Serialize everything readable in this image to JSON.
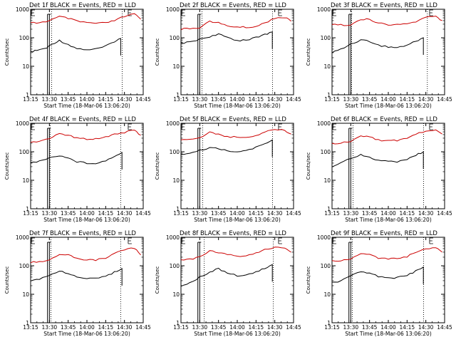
{
  "chart_data": [
    {
      "type": "line",
      "title": "Det 1f BLACK = Events, RED = LLD",
      "ylabel": "Counts/sec",
      "xlabel": "Start Time (18-Mar-06 13:06:20)",
      "x_ticks": [
        "13:15",
        "13:30",
        "13:45",
        "14:00",
        "14:15",
        "14:30",
        "14:45"
      ],
      "y_ticks": [
        "1",
        "10",
        "100",
        "1000"
      ],
      "yscale": "log",
      "ylim": [
        1,
        1000
      ],
      "series": [
        {
          "name": "Events",
          "color": "#000000",
          "x": [
            "13:15",
            "13:20",
            "13:28",
            "13:32",
            "13:38",
            "13:45",
            "13:52",
            "14:00",
            "14:07",
            "14:15",
            "14:22",
            "14:27"
          ],
          "values": [
            32,
            36,
            44,
            60,
            80,
            58,
            42,
            38,
            40,
            50,
            75,
            95
          ]
        },
        {
          "name": "LLD",
          "color": "#cc0000",
          "x": [
            "13:15",
            "13:22",
            "13:30",
            "13:38",
            "13:45",
            "13:52",
            "14:00",
            "14:07",
            "14:15",
            "14:22",
            "14:30",
            "14:38",
            "14:43"
          ],
          "values": [
            330,
            340,
            400,
            550,
            480,
            380,
            340,
            320,
            330,
            400,
            560,
            680,
            450
          ]
        }
      ]
    },
    {
      "type": "line",
      "title": "Det 2f BLACK = Events, RED = LLD",
      "ylabel": "Counts/sec",
      "xlabel": "Start Time (18-Mar-06 13:06:20)",
      "x_ticks": [
        "13:15",
        "13:30",
        "13:45",
        "14:00",
        "14:15",
        "14:30",
        "14:45"
      ],
      "y_ticks": [
        "1",
        "10",
        "100",
        "1000"
      ],
      "yscale": "log",
      "ylim": [
        1,
        1000
      ],
      "series": [
        {
          "name": "Events",
          "color": "#000000",
          "x": [
            "13:15",
            "13:22",
            "13:30",
            "13:38",
            "13:45",
            "13:52",
            "14:00",
            "14:07",
            "14:15",
            "14:22",
            "14:28"
          ],
          "values": [
            65,
            70,
            90,
            110,
            130,
            105,
            80,
            85,
            100,
            130,
            160
          ]
        },
        {
          "name": "LLD",
          "color": "#cc0000",
          "x": [
            "13:15",
            "13:22",
            "13:30",
            "13:38",
            "13:45",
            "13:52",
            "14:00",
            "14:07",
            "14:15",
            "14:22",
            "14:30",
            "14:38",
            "14:43"
          ],
          "values": [
            200,
            210,
            230,
            380,
            330,
            260,
            240,
            230,
            250,
            330,
            500,
            520,
            380
          ]
        }
      ]
    },
    {
      "type": "line",
      "title": "Det 3f BLACK = Events, RED = LLD",
      "ylabel": "Counts/sec",
      "xlabel": "Start Time (18-Mar-06 13:06:20)",
      "x_ticks": [
        "13:15",
        "13:30",
        "13:45",
        "14:00",
        "14:15",
        "14:30",
        "14:45"
      ],
      "y_ticks": [
        "1",
        "10",
        "100",
        "1000"
      ],
      "yscale": "log",
      "ylim": [
        1,
        1000
      ],
      "series": [
        {
          "name": "Events",
          "color": "#000000",
          "x": [
            "13:15",
            "13:22",
            "13:30",
            "13:38",
            "13:45",
            "13:52",
            "14:00",
            "14:07",
            "14:15",
            "14:22",
            "14:28"
          ],
          "values": [
            30,
            40,
            60,
            85,
            75,
            55,
            48,
            45,
            55,
            75,
            100
          ]
        },
        {
          "name": "LLD",
          "color": "#cc0000",
          "x": [
            "13:15",
            "13:22",
            "13:30",
            "13:38",
            "13:45",
            "13:52",
            "14:00",
            "14:07",
            "14:15",
            "14:22",
            "14:30",
            "14:38",
            "14:43"
          ],
          "values": [
            300,
            280,
            290,
            420,
            450,
            330,
            280,
            290,
            310,
            370,
            520,
            560,
            400
          ]
        }
      ]
    },
    {
      "type": "line",
      "title": "Det 4f BLACK = Events, RED = LLD",
      "ylabel": "Counts/sec",
      "xlabel": "Start Time (18-Mar-06 13:06:20)",
      "x_ticks": [
        "13:15",
        "13:30",
        "13:45",
        "14:00",
        "14:15",
        "14:30",
        "14:45"
      ],
      "y_ticks": [
        "1",
        "10",
        "100",
        "1000"
      ],
      "yscale": "log",
      "ylim": [
        1,
        1000
      ],
      "series": [
        {
          "name": "Events",
          "color": "#000000",
          "x": [
            "13:15",
            "13:22",
            "13:30",
            "13:38",
            "13:45",
            "13:52",
            "14:00",
            "14:07",
            "14:15",
            "14:22",
            "14:28"
          ],
          "values": [
            40,
            48,
            60,
            75,
            60,
            45,
            40,
            40,
            48,
            70,
            95
          ]
        },
        {
          "name": "LLD",
          "color": "#cc0000",
          "x": [
            "13:15",
            "13:22",
            "13:30",
            "13:38",
            "13:45",
            "13:52",
            "14:00",
            "14:07",
            "14:15",
            "14:22",
            "14:30",
            "14:38",
            "14:43"
          ],
          "values": [
            220,
            230,
            300,
            430,
            380,
            300,
            280,
            290,
            330,
            420,
            480,
            560,
            380
          ]
        }
      ]
    },
    {
      "type": "line",
      "title": "Det 5f BLACK = Events, RED = LLD",
      "ylabel": "Counts/sec",
      "xlabel": "Start Time (18-Mar-06 13:06:20)",
      "x_ticks": [
        "13:15",
        "13:30",
        "13:45",
        "14:00",
        "14:15",
        "14:30",
        "14:45"
      ],
      "y_ticks": [
        "1",
        "10",
        "100",
        "1000"
      ],
      "yscale": "log",
      "ylim": [
        1,
        1000
      ],
      "series": [
        {
          "name": "Events",
          "color": "#000000",
          "x": [
            "13:15",
            "13:22",
            "13:30",
            "13:38",
            "13:45",
            "13:52",
            "14:00",
            "14:07",
            "14:15",
            "14:22",
            "14:28"
          ],
          "values": [
            80,
            90,
            110,
            140,
            130,
            110,
            100,
            110,
            140,
            200,
            260
          ]
        },
        {
          "name": "LLD",
          "color": "#cc0000",
          "x": [
            "13:15",
            "13:22",
            "13:30",
            "13:38",
            "13:45",
            "13:52",
            "14:00",
            "14:07",
            "14:15",
            "14:22",
            "14:30",
            "14:38",
            "14:43"
          ],
          "values": [
            270,
            280,
            300,
            480,
            420,
            340,
            320,
            330,
            370,
            500,
            620,
            560,
            420
          ]
        }
      ]
    },
    {
      "type": "line",
      "title": "Det 6f BLACK = Events, RED = LLD",
      "ylabel": "Counts/sec",
      "xlabel": "Start Time (18-Mar-06 13:06:20)",
      "x_ticks": [
        "13:15",
        "13:30",
        "13:45",
        "14:00",
        "14:15",
        "14:30",
        "14:45"
      ],
      "y_ticks": [
        "1",
        "10",
        "100",
        "1000"
      ],
      "yscale": "log",
      "ylim": [
        1,
        1000
      ],
      "series": [
        {
          "name": "Events",
          "color": "#000000",
          "x": [
            "13:15",
            "13:22",
            "13:30",
            "13:38",
            "13:45",
            "13:52",
            "14:00",
            "14:07",
            "14:15",
            "14:22",
            "14:28"
          ],
          "values": [
            30,
            40,
            60,
            80,
            65,
            50,
            45,
            45,
            55,
            75,
            100
          ]
        },
        {
          "name": "LLD",
          "color": "#cc0000",
          "x": [
            "13:15",
            "13:22",
            "13:30",
            "13:38",
            "13:45",
            "13:52",
            "14:00",
            "14:07",
            "14:15",
            "14:22",
            "14:30",
            "14:38",
            "14:43"
          ],
          "values": [
            200,
            200,
            230,
            380,
            330,
            260,
            240,
            250,
            300,
            420,
            520,
            560,
            420
          ]
        }
      ]
    },
    {
      "type": "line",
      "title": "Det 7f BLACK = Events, RED = LLD",
      "ylabel": "Counts/sec",
      "xlabel": "Start Time (18-Mar-06 13:06:20)",
      "x_ticks": [
        "13:15",
        "13:30",
        "13:45",
        "14:00",
        "14:15",
        "14:30",
        "14:45"
      ],
      "y_ticks": [
        "1",
        "10",
        "100",
        "1000"
      ],
      "yscale": "log",
      "ylim": [
        1,
        1000
      ],
      "series": [
        {
          "name": "Events",
          "color": "#000000",
          "x": [
            "13:15",
            "13:22",
            "13:30",
            "13:38",
            "13:45",
            "13:52",
            "14:00",
            "14:07",
            "14:15",
            "14:22",
            "14:28"
          ],
          "values": [
            30,
            35,
            45,
            65,
            55,
            40,
            35,
            35,
            42,
            60,
            80
          ]
        },
        {
          "name": "LLD",
          "color": "#cc0000",
          "x": [
            "13:15",
            "13:22",
            "13:30",
            "13:38",
            "13:45",
            "13:52",
            "14:00",
            "14:07",
            "14:15",
            "14:22",
            "14:30",
            "14:38",
            "14:43"
          ],
          "values": [
            130,
            140,
            160,
            260,
            240,
            180,
            160,
            160,
            190,
            270,
            380,
            420,
            240
          ]
        }
      ]
    },
    {
      "type": "line",
      "title": "Det 8f BLACK = Events, RED = LLD",
      "ylabel": "Counts/sec",
      "xlabel": "Start Time (18-Mar-06 13:06:20)",
      "x_ticks": [
        "13:15",
        "13:30",
        "13:45",
        "14:00",
        "14:15",
        "14:30",
        "14:45"
      ],
      "y_ticks": [
        "1",
        "10",
        "100",
        "1000"
      ],
      "yscale": "log",
      "ylim": [
        1,
        1000
      ],
      "series": [
        {
          "name": "Events",
          "color": "#000000",
          "x": [
            "13:15",
            "13:22",
            "13:30",
            "13:38",
            "13:45",
            "13:52",
            "14:00",
            "14:07",
            "14:15",
            "14:22",
            "14:28"
          ],
          "values": [
            20,
            25,
            40,
            60,
            80,
            55,
            45,
            48,
            60,
            80,
            110
          ]
        },
        {
          "name": "LLD",
          "color": "#cc0000",
          "x": [
            "13:15",
            "13:22",
            "13:30",
            "13:38",
            "13:45",
            "13:52",
            "14:00",
            "14:07",
            "14:15",
            "14:22",
            "14:30",
            "14:38",
            "14:43"
          ],
          "values": [
            160,
            170,
            200,
            330,
            300,
            240,
            220,
            230,
            270,
            360,
            430,
            420,
            300
          ]
        }
      ]
    },
    {
      "type": "line",
      "title": "Det 9f BLACK = Events, RED = LLD",
      "ylabel": "Counts/sec",
      "xlabel": "Start Time (18-Mar-06 13:06:20)",
      "x_ticks": [
        "13:15",
        "13:30",
        "13:45",
        "14:00",
        "14:15",
        "14:30",
        "14:45"
      ],
      "y_ticks": [
        "1",
        "10",
        "100",
        "1000"
      ],
      "yscale": "log",
      "ylim": [
        1,
        1000
      ],
      "series": [
        {
          "name": "Events",
          "color": "#000000",
          "x": [
            "13:15",
            "13:22",
            "13:30",
            "13:38",
            "13:45",
            "13:52",
            "14:00",
            "14:07",
            "14:15",
            "14:22",
            "14:28"
          ],
          "values": [
            25,
            30,
            45,
            65,
            55,
            42,
            38,
            38,
            45,
            65,
            90
          ]
        },
        {
          "name": "LLD",
          "color": "#cc0000",
          "x": [
            "13:15",
            "13:22",
            "13:30",
            "13:38",
            "13:45",
            "13:52",
            "14:00",
            "14:07",
            "14:15",
            "14:22",
            "14:30",
            "14:38",
            "14:43"
          ],
          "values": [
            150,
            150,
            170,
            270,
            250,
            190,
            170,
            180,
            210,
            300,
            380,
            420,
            300
          ]
        }
      ]
    }
  ]
}
